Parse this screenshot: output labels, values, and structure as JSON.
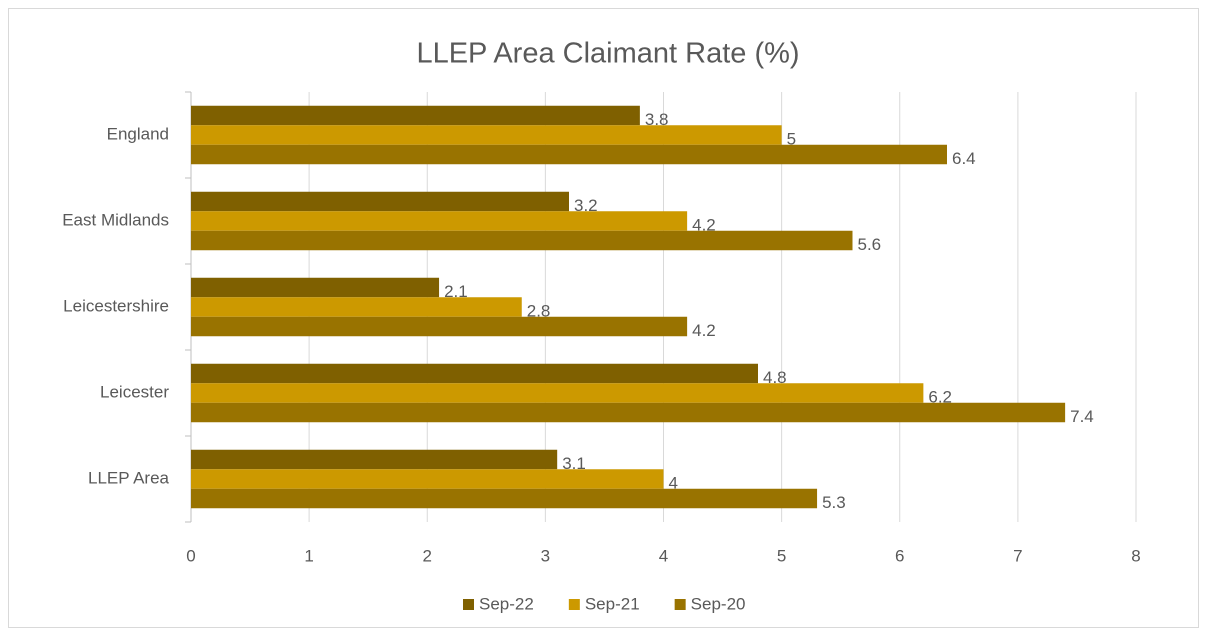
{
  "chart_data": {
    "type": "hbar",
    "title": "LLEP Area Claimant Rate (%)",
    "categories": [
      "England",
      "East Midlands",
      "Leicestershire",
      "Leicester",
      "LLEP Area"
    ],
    "series": [
      {
        "name": "Sep-22",
        "color": "#7f6000",
        "values": [
          3.8,
          3.2,
          2.1,
          4.8,
          3.1
        ]
      },
      {
        "name": "Sep-21",
        "color": "#cc9900",
        "values": [
          5,
          4.2,
          2.8,
          6.2,
          4
        ]
      },
      {
        "name": "Sep-20",
        "color": "#997300",
        "values": [
          6.4,
          5.6,
          4.2,
          7.4,
          5.3
        ]
      }
    ],
    "xlim": [
      0,
      8
    ],
    "xticks": [
      0,
      1,
      2,
      3,
      4,
      5,
      6,
      7,
      8
    ],
    "grid": true,
    "legend": "bottom"
  }
}
